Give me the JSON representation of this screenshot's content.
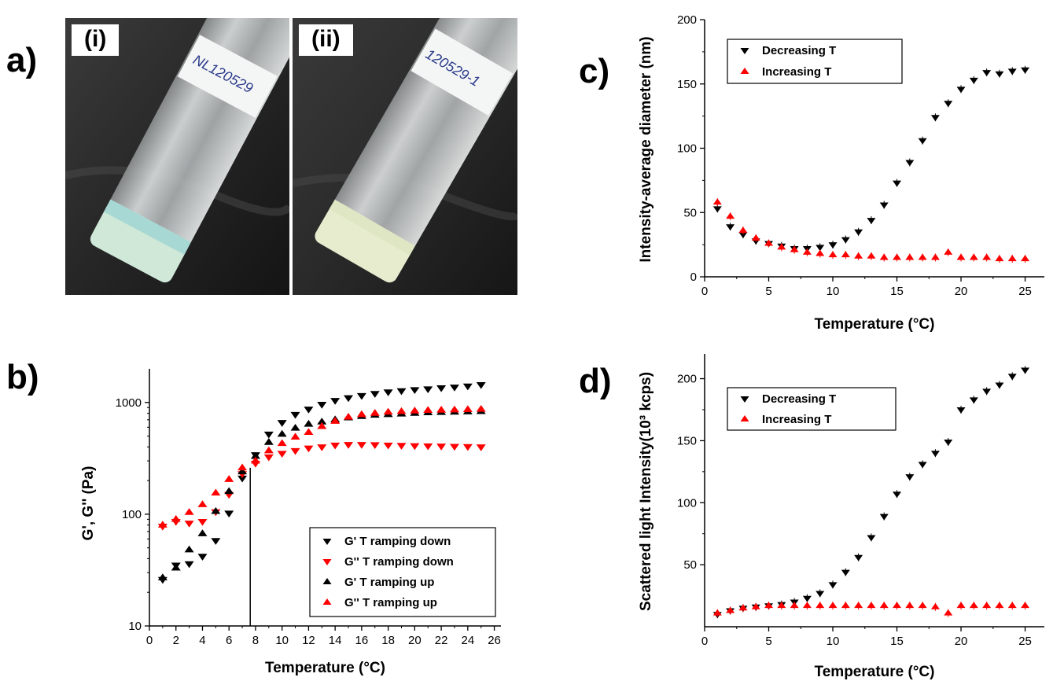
{
  "panels": {
    "a": "a)",
    "b": "b)",
    "c": "c)",
    "d": "d)"
  },
  "photos": [
    {
      "label": "(i)",
      "note": "NL120529",
      "description": "vial with clear liquid and bluish fluid settled at the bottom"
    },
    {
      "label": "(ii)",
      "note": "120529-1",
      "description": "vial with clear liquid and whitish turbid fluid settled at the bottom"
    }
  ],
  "chart_data": [
    {
      "id": "b",
      "type": "scatter",
      "xlabel": "Temperature (°C)",
      "ylabel": "G', G'' (Pa)",
      "yscale": "log",
      "xlim": [
        0,
        26.5
      ],
      "ylim": [
        10,
        2000
      ],
      "xticks": [
        "0",
        "2",
        "4",
        "6",
        "8",
        "10",
        "12",
        "14",
        "16",
        "18",
        "20",
        "22",
        "24",
        "26"
      ],
      "yticks": [
        "10",
        "100",
        "1000"
      ],
      "vline_x": 7.6,
      "legend_position": "bottom-right",
      "x": [
        1,
        2,
        3,
        4,
        5,
        6,
        7,
        8,
        9,
        10,
        11,
        12,
        13,
        14,
        15,
        16,
        17,
        18,
        19,
        20,
        21,
        22,
        23,
        24,
        25
      ],
      "series": [
        {
          "name": "G' T ramping down",
          "marker": "triangle-down",
          "color": "#000000",
          "values": [
            26,
            35,
            36,
            42,
            58,
            102,
            210,
            340,
            520,
            660,
            780,
            870,
            960,
            1040,
            1100,
            1150,
            1200,
            1240,
            1270,
            1300,
            1320,
            1350,
            1370,
            1400,
            1440
          ]
        },
        {
          "name": "G'' T ramping down",
          "marker": "triangle-down",
          "color": "#ff0000",
          "values": [
            78,
            86,
            83,
            86,
            105,
            150,
            230,
            285,
            325,
            350,
            370,
            390,
            400,
            415,
            420,
            420,
            418,
            415,
            412,
            410,
            408,
            406,
            404,
            402,
            400
          ]
        },
        {
          "name": "G' T ramping up",
          "marker": "triangle-up",
          "color": "#000000",
          "values": [
            27,
            33,
            48,
            67,
            106,
            160,
            240,
            330,
            440,
            520,
            590,
            640,
            670,
            700,
            730,
            750,
            770,
            780,
            790,
            800,
            810,
            815,
            820,
            825,
            830
          ]
        },
        {
          "name": "G'' T ramping up",
          "marker": "triangle-up",
          "color": "#ff0000",
          "values": [
            80,
            90,
            104,
            122,
            155,
            205,
            260,
            300,
            370,
            430,
            490,
            540,
            610,
            680,
            740,
            780,
            800,
            820,
            830,
            840,
            850,
            855,
            860,
            865,
            870
          ]
        }
      ]
    },
    {
      "id": "c",
      "type": "scatter",
      "xlabel": "Temperature (°C)",
      "ylabel": "Intensity-average diameter (nm)",
      "xlim": [
        0,
        26.5
      ],
      "ylim": [
        0,
        200
      ],
      "xticks": [
        "0",
        "5",
        "10",
        "15",
        "20",
        "25"
      ],
      "yticks": [
        "0",
        "50",
        "100",
        "150",
        "200"
      ],
      "legend_position": "top-left",
      "x": [
        1,
        2,
        3,
        4,
        5,
        6,
        7,
        8,
        9,
        10,
        11,
        12,
        13,
        14,
        15,
        16,
        17,
        18,
        19,
        20,
        21,
        22,
        23,
        24,
        25
      ],
      "series": [
        {
          "name": "Decreasing T",
          "marker": "triangle-down",
          "color": "#000000",
          "values": [
            53,
            39,
            33,
            28,
            26,
            24,
            22,
            22,
            23,
            25,
            29,
            35,
            44,
            56,
            73,
            89,
            106,
            124,
            135,
            146,
            153,
            159,
            158,
            160,
            161
          ]
        },
        {
          "name": "Increasing T",
          "marker": "triangle-up",
          "color": "#ff0000",
          "values": [
            58,
            47,
            36,
            30,
            26,
            23,
            21,
            19,
            18,
            17,
            17,
            16,
            16,
            15,
            15,
            15,
            15,
            15,
            19,
            15,
            15,
            15,
            14,
            14,
            14
          ]
        }
      ]
    },
    {
      "id": "d",
      "type": "scatter",
      "xlabel": "Temperature (°C)",
      "ylabel": "Scattered light Intensity(10³ kcps)",
      "xlim": [
        0,
        26.5
      ],
      "ylim": [
        0,
        220
      ],
      "xticks": [
        "0",
        "5",
        "10",
        "15",
        "20",
        "25"
      ],
      "yticks": [
        "50",
        "100",
        "150",
        "200"
      ],
      "legend_position": "top-left",
      "x": [
        1,
        2,
        3,
        4,
        5,
        6,
        7,
        8,
        9,
        10,
        11,
        12,
        13,
        14,
        15,
        16,
        17,
        18,
        19,
        20,
        21,
        22,
        23,
        24,
        25
      ],
      "series": [
        {
          "name": "Decreasing T",
          "marker": "triangle-down",
          "color": "#000000",
          "values": [
            10,
            13,
            15,
            16,
            17,
            18,
            20,
            23,
            27,
            34,
            44,
            56,
            72,
            89,
            107,
            121,
            131,
            140,
            149,
            175,
            183,
            190,
            195,
            202,
            207
          ]
        },
        {
          "name": "Increasing T",
          "marker": "triangle-up",
          "color": "#ff0000",
          "values": [
            11,
            13,
            15,
            16,
            17,
            17,
            17,
            17,
            17,
            17,
            17,
            17,
            17,
            17,
            17,
            17,
            17,
            16,
            11,
            17,
            17,
            17,
            17,
            17,
            17
          ]
        }
      ]
    }
  ]
}
